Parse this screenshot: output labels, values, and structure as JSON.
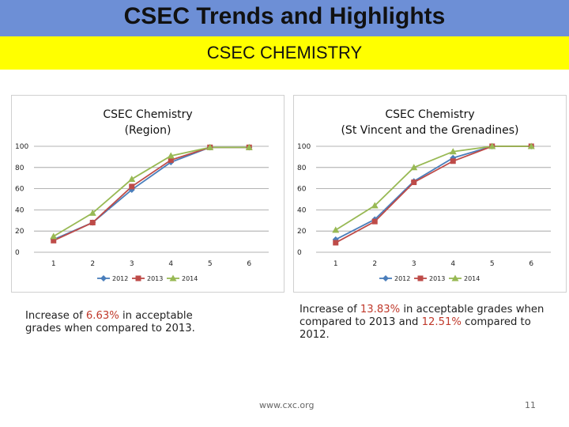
{
  "header": {
    "title": "CSEC Trends and Highlights",
    "subtitle": "CSEC CHEMISTRY"
  },
  "colors": {
    "series_2012": "#4a7ebb",
    "series_2013": "#be4b48",
    "series_2014": "#98b954",
    "title_bar": "#6d8fd6",
    "subtitle_bar": "#ffff00",
    "highlight": "#c0392b"
  },
  "chart_data": [
    {
      "type": "line",
      "title_lines": [
        "CSEC Chemistry",
        "(Region)"
      ],
      "x": [
        1,
        2,
        3,
        4,
        5,
        6
      ],
      "xlim": [
        0.5,
        6.5
      ],
      "ylim": [
        0,
        100
      ],
      "yticks": [
        0,
        20,
        40,
        60,
        80,
        100
      ],
      "series": [
        {
          "name": "2012",
          "values": [
            12,
            28,
            59,
            85,
            99,
            99
          ]
        },
        {
          "name": "2013",
          "values": [
            11,
            28,
            62,
            87,
            99,
            99
          ]
        },
        {
          "name": "2014",
          "values": [
            15,
            37,
            69,
            91,
            99,
            99
          ]
        }
      ],
      "legend": "bottom"
    },
    {
      "type": "line",
      "title_lines": [
        "CSEC  Chemistry",
        "(St Vincent and the Grenadines)"
      ],
      "x": [
        1,
        2,
        3,
        4,
        5,
        6
      ],
      "xlim": [
        0.5,
        6.5
      ],
      "ylim": [
        0,
        100
      ],
      "yticks": [
        0,
        20,
        40,
        60,
        80,
        100
      ],
      "series": [
        {
          "name": "2012",
          "values": [
            12,
            31,
            67,
            89,
            100,
            100
          ]
        },
        {
          "name": "2013",
          "values": [
            9,
            29,
            66,
            86,
            100,
            100
          ]
        },
        {
          "name": "2014",
          "values": [
            21,
            44,
            80,
            95,
            100,
            100
          ]
        }
      ],
      "legend": "bottom"
    }
  ],
  "text": {
    "left_pre": "Increase of ",
    "left_pct": "6.63%",
    "left_post": " in acceptable grades when compared to 2013.",
    "right_pre": "Increase of ",
    "right_pct1": "13.83%",
    "right_mid": " in acceptable grades when compared to 2013 and ",
    "right_pct2": "12.51%",
    "right_post": " compared to 2012."
  },
  "footer": {
    "url": "www.cxc.org",
    "page": "11"
  }
}
